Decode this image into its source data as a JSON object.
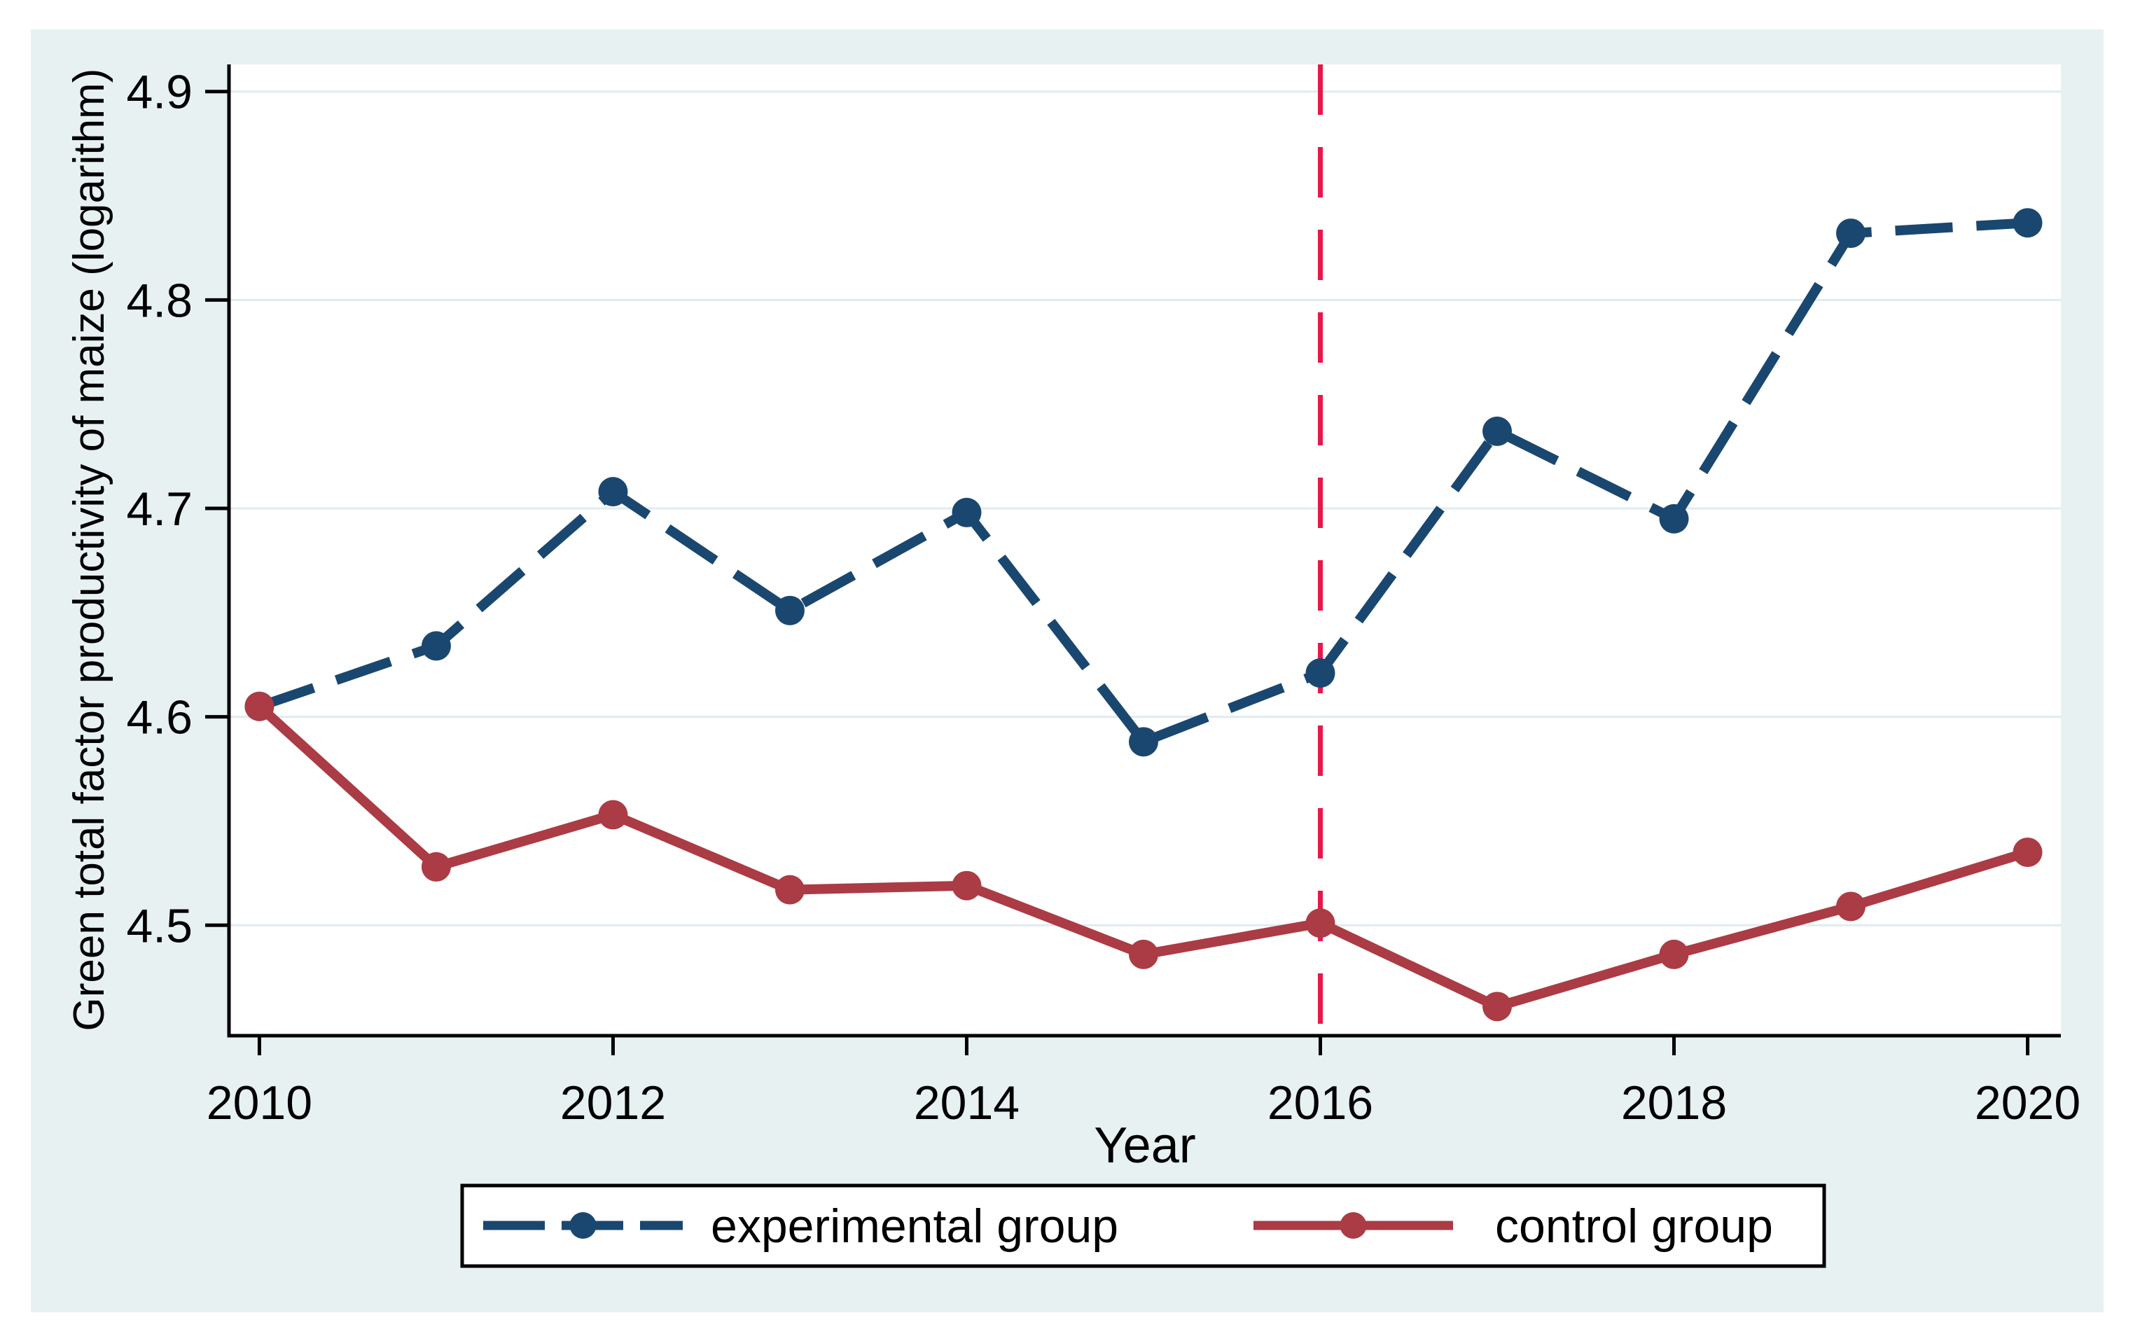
{
  "figure": {
    "background_color": "#e7f1f2",
    "plot_background": "#ffffff",
    "grid_color": "#dfecf0",
    "axis_color": "#000000",
    "text_color": "#000000"
  },
  "chart_data": {
    "type": "line",
    "title": "",
    "xlabel": "Year",
    "ylabel": "Green total factor productivity of maize (logarithm)",
    "x": [
      2010,
      2011,
      2012,
      2013,
      2014,
      2015,
      2016,
      2017,
      2018,
      2019,
      2020
    ],
    "x_ticks": [
      2010,
      2012,
      2014,
      2016,
      2018,
      2020
    ],
    "y_ticks": [
      4.5,
      4.6,
      4.7,
      4.8,
      4.9
    ],
    "y_tick_format": "one-decimal",
    "xlim": [
      2009.828,
      2020.188
    ],
    "ylim": [
      4.447,
      4.913
    ],
    "grid": "horizontal",
    "series": [
      {
        "name": "experimental group",
        "color": "#1a476f",
        "line_style": "dashed",
        "marker": "circle",
        "values": [
          4.605,
          4.634,
          4.708,
          4.651,
          4.698,
          4.588,
          4.621,
          4.737,
          4.695,
          4.832,
          4.837
        ]
      },
      {
        "name": "control group",
        "color": "#ab3b44",
        "line_style": "solid",
        "marker": "circle",
        "values": [
          4.605,
          4.528,
          4.553,
          4.517,
          4.519,
          4.486,
          4.501,
          4.461,
          4.486,
          4.509,
          4.535
        ]
      }
    ],
    "vline": {
      "x": 2016,
      "color": "#e8174b",
      "style": "dashed"
    },
    "legend": {
      "position": "bottom",
      "entries": [
        "experimental group",
        "control group"
      ]
    }
  }
}
